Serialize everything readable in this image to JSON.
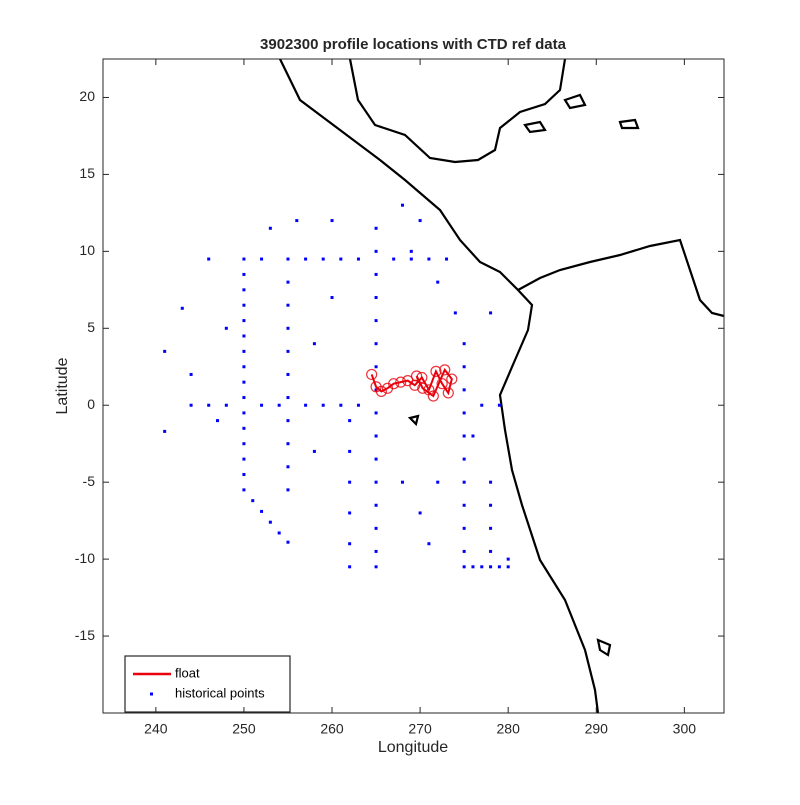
{
  "chart_data": {
    "type": "scatter",
    "title": "3902300 profile locations with CTD ref data",
    "x_label": "Longitude",
    "y_label": "Latitude",
    "xlim": [
      234,
      304.5
    ],
    "ylim": [
      -20,
      22.5
    ],
    "xticks": [
      240,
      250,
      260,
      270,
      280,
      290,
      300
    ],
    "yticks": [
      -15,
      -10,
      -5,
      0,
      5,
      10,
      15,
      20
    ],
    "legend": "lower left",
    "series": [
      {
        "name": "float",
        "color": "#e8000b",
        "style": "line",
        "x": [
          264.5,
          265.0,
          265.6,
          266.3,
          267.0,
          267.8,
          268.6,
          269.4,
          270.2,
          271.0,
          271.8,
          272.5,
          273.2,
          273.6,
          272.8,
          271.5,
          270.3,
          269.6
        ],
        "y": [
          2.0,
          1.2,
          0.9,
          1.1,
          1.4,
          1.5,
          1.6,
          1.3,
          1.8,
          1.0,
          2.2,
          1.4,
          0.8,
          1.7,
          2.3,
          0.6,
          1.1,
          1.9
        ]
      },
      {
        "name": "historical points",
        "color": "#0000ff",
        "style": "dot",
        "x": [
          250,
          250,
          250,
          250,
          250,
          250,
          250,
          250,
          250,
          250,
          250,
          250,
          250,
          250,
          250,
          250,
          251,
          252,
          253,
          254,
          255,
          255,
          255,
          255,
          255,
          255,
          255,
          255,
          255,
          255,
          255,
          255,
          265,
          265,
          265,
          265,
          265,
          265,
          265,
          265,
          265,
          265,
          265,
          265,
          265,
          265,
          265,
          265,
          275,
          275,
          275,
          275,
          275,
          275,
          275,
          275,
          275,
          275,
          275,
          252,
          257,
          259,
          261,
          263,
          267,
          269,
          271,
          273,
          244,
          246,
          248,
          252,
          254,
          257,
          259,
          261,
          263,
          277,
          279,
          276,
          277,
          278,
          279,
          280,
          278,
          278,
          278,
          278,
          262,
          262,
          262,
          262,
          262,
          262,
          241,
          241,
          243,
          244,
          246,
          248,
          247,
          253,
          256,
          260,
          258,
          260,
          258,
          268,
          270,
          268,
          270,
          272,
          271,
          274,
          278,
          276,
          280,
          269,
          272
        ],
        "y": [
          9.5,
          8.5,
          7.5,
          6.5,
          5.5,
          4.5,
          3.5,
          2.5,
          1.5,
          0.5,
          -0.5,
          -1.5,
          -2.5,
          -3.5,
          -4.5,
          -5.5,
          -6.2,
          -6.9,
          -7.6,
          -8.3,
          -8.9,
          9.5,
          8,
          6.5,
          5,
          3.5,
          2,
          0.5,
          -1,
          -2.5,
          -4,
          -5.5,
          11.5,
          10,
          8.5,
          7,
          5.5,
          4,
          2.5,
          1,
          -0.5,
          -2,
          -3.5,
          -5,
          -6.5,
          -8,
          -9.5,
          -10.5,
          4,
          2.5,
          1,
          -0.5,
          -2,
          -3.5,
          -5,
          -6.5,
          -8,
          -9.5,
          -10.5,
          9.5,
          9.5,
          9.5,
          9.5,
          9.5,
          9.5,
          9.5,
          9.5,
          9.5,
          0,
          0,
          0,
          0,
          0,
          0,
          0,
          0,
          0,
          0,
          0,
          -10.5,
          -10.5,
          -10.5,
          -10.5,
          -10.5,
          -5,
          -6.5,
          -8,
          -9.5,
          -1,
          -3,
          -5,
          -7,
          -9,
          -10.5,
          3.5,
          -1.7,
          6.3,
          2,
          9.5,
          5,
          -1,
          11.5,
          12,
          12,
          4,
          7,
          -3,
          13,
          12,
          -5,
          -7,
          -5,
          -9,
          6,
          6,
          -2,
          -10,
          10,
          8
        ]
      }
    ]
  }
}
